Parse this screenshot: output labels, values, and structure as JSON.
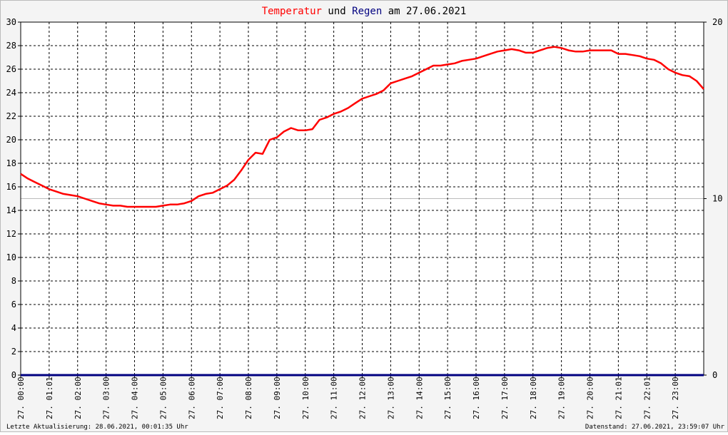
{
  "title": {
    "part1": "Temperatur",
    "part2": " und ",
    "part3": "Regen",
    "part4": " am 27.06.2021",
    "color_temp": "#ff0000",
    "color_rain": "#000080",
    "color_text": "#000000"
  },
  "footer": {
    "left": "Letzte Aktualisierung: 28.06.2021, 00:01:35 Uhr",
    "right": "Datenstand: 27.06.2021, 23:59:07 Uhr"
  },
  "chart_data": {
    "type": "line",
    "grid": true,
    "x_unit": "hours",
    "xlim": [
      0,
      24
    ],
    "x_ticks": [
      {
        "x": 0,
        "label": "27. 00:00"
      },
      {
        "x": 1,
        "label": "27. 01:01"
      },
      {
        "x": 2,
        "label": "27. 02:00"
      },
      {
        "x": 3,
        "label": "27. 03:00"
      },
      {
        "x": 4,
        "label": "27. 04:00"
      },
      {
        "x": 5,
        "label": "27. 05:00"
      },
      {
        "x": 6,
        "label": "27. 06:00"
      },
      {
        "x": 7,
        "label": "27. 07:00"
      },
      {
        "x": 8,
        "label": "27. 08:00"
      },
      {
        "x": 9,
        "label": "27. 09:00"
      },
      {
        "x": 10,
        "label": "27. 10:00"
      },
      {
        "x": 11,
        "label": "27. 11:00"
      },
      {
        "x": 12,
        "label": "27. 12:00"
      },
      {
        "x": 13,
        "label": "27. 13:00"
      },
      {
        "x": 14,
        "label": "27. 14:00"
      },
      {
        "x": 15,
        "label": "27. 15:00"
      },
      {
        "x": 16,
        "label": "27. 16:00"
      },
      {
        "x": 17,
        "label": "27. 17:00"
      },
      {
        "x": 18,
        "label": "27. 18:00"
      },
      {
        "x": 19,
        "label": "27. 19:00"
      },
      {
        "x": 20,
        "label": "27. 20:00"
      },
      {
        "x": 21,
        "label": "27. 21:01"
      },
      {
        "x": 22,
        "label": "27. 22:01"
      },
      {
        "x": 23,
        "label": "27. 23:00"
      }
    ],
    "y_left": {
      "lim": [
        0,
        30
      ],
      "ticks": [
        0,
        2,
        4,
        6,
        8,
        10,
        12,
        14,
        16,
        18,
        20,
        22,
        24,
        26,
        28,
        30
      ]
    },
    "y_right": {
      "lim": [
        0,
        20
      ],
      "ticks": [
        0,
        10,
        20
      ]
    },
    "series": [
      {
        "name": "Temperatur",
        "color": "#ff0000",
        "axis": "left",
        "points": [
          [
            0.0,
            17.1
          ],
          [
            0.25,
            16.7
          ],
          [
            0.5,
            16.4
          ],
          [
            0.75,
            16.1
          ],
          [
            1.0,
            15.8
          ],
          [
            1.25,
            15.6
          ],
          [
            1.5,
            15.4
          ],
          [
            1.75,
            15.3
          ],
          [
            2.0,
            15.2
          ],
          [
            2.25,
            15.0
          ],
          [
            2.5,
            14.8
          ],
          [
            2.75,
            14.6
          ],
          [
            3.0,
            14.5
          ],
          [
            3.25,
            14.4
          ],
          [
            3.5,
            14.4
          ],
          [
            3.75,
            14.3
          ],
          [
            4.0,
            14.3
          ],
          [
            4.25,
            14.3
          ],
          [
            4.5,
            14.3
          ],
          [
            4.75,
            14.3
          ],
          [
            5.0,
            14.4
          ],
          [
            5.25,
            14.5
          ],
          [
            5.5,
            14.5
          ],
          [
            5.75,
            14.6
          ],
          [
            6.0,
            14.8
          ],
          [
            6.25,
            15.2
          ],
          [
            6.5,
            15.4
          ],
          [
            6.75,
            15.5
          ],
          [
            7.0,
            15.8
          ],
          [
            7.25,
            16.1
          ],
          [
            7.5,
            16.6
          ],
          [
            7.75,
            17.4
          ],
          [
            8.0,
            18.3
          ],
          [
            8.25,
            18.9
          ],
          [
            8.5,
            18.8
          ],
          [
            8.75,
            20.0
          ],
          [
            9.0,
            20.2
          ],
          [
            9.25,
            20.7
          ],
          [
            9.5,
            21.0
          ],
          [
            9.75,
            20.8
          ],
          [
            10.0,
            20.8
          ],
          [
            10.25,
            20.9
          ],
          [
            10.5,
            21.7
          ],
          [
            10.75,
            21.9
          ],
          [
            11.0,
            22.2
          ],
          [
            11.25,
            22.4
          ],
          [
            11.5,
            22.7
          ],
          [
            11.75,
            23.1
          ],
          [
            12.0,
            23.5
          ],
          [
            12.25,
            23.7
          ],
          [
            12.5,
            23.9
          ],
          [
            12.75,
            24.2
          ],
          [
            13.0,
            24.8
          ],
          [
            13.25,
            25.0
          ],
          [
            13.5,
            25.2
          ],
          [
            13.75,
            25.4
          ],
          [
            14.0,
            25.7
          ],
          [
            14.25,
            26.0
          ],
          [
            14.5,
            26.3
          ],
          [
            14.75,
            26.3
          ],
          [
            15.0,
            26.4
          ],
          [
            15.25,
            26.5
          ],
          [
            15.5,
            26.7
          ],
          [
            15.75,
            26.8
          ],
          [
            16.0,
            26.9
          ],
          [
            16.25,
            27.1
          ],
          [
            16.5,
            27.3
          ],
          [
            16.75,
            27.5
          ],
          [
            17.0,
            27.6
          ],
          [
            17.25,
            27.7
          ],
          [
            17.5,
            27.6
          ],
          [
            17.75,
            27.4
          ],
          [
            18.0,
            27.4
          ],
          [
            18.25,
            27.6
          ],
          [
            18.5,
            27.8
          ],
          [
            18.75,
            27.9
          ],
          [
            19.0,
            27.8
          ],
          [
            19.25,
            27.6
          ],
          [
            19.5,
            27.5
          ],
          [
            19.75,
            27.5
          ],
          [
            20.0,
            27.6
          ],
          [
            20.25,
            27.6
          ],
          [
            20.5,
            27.6
          ],
          [
            20.75,
            27.6
          ],
          [
            21.0,
            27.3
          ],
          [
            21.25,
            27.3
          ],
          [
            21.5,
            27.2
          ],
          [
            21.75,
            27.1
          ],
          [
            22.0,
            26.9
          ],
          [
            22.25,
            26.8
          ],
          [
            22.5,
            26.5
          ],
          [
            22.75,
            26.0
          ],
          [
            23.0,
            25.7
          ],
          [
            23.25,
            25.5
          ],
          [
            23.5,
            25.4
          ],
          [
            23.75,
            25.0
          ],
          [
            24.0,
            24.3
          ]
        ]
      },
      {
        "name": "Regen",
        "color": "#000080",
        "axis": "right",
        "points": [
          [
            0,
            0
          ],
          [
            24,
            0
          ]
        ]
      }
    ]
  }
}
